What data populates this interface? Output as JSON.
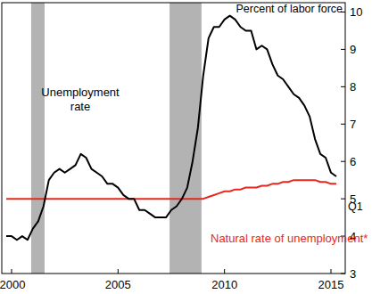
{
  "chart_data": {
    "type": "line",
    "y_label": "Percent of labor force",
    "annotation": "Q1",
    "x": [
      1999.75,
      2000,
      2000.25,
      2000.5,
      2000.75,
      2001,
      2001.25,
      2001.5,
      2001.75,
      2002,
      2002.25,
      2002.5,
      2002.75,
      2003,
      2003.25,
      2003.5,
      2003.75,
      2004,
      2004.25,
      2004.5,
      2004.75,
      2005,
      2005.25,
      2005.5,
      2005.75,
      2006,
      2006.25,
      2006.5,
      2006.75,
      2007,
      2007.25,
      2007.5,
      2007.75,
      2008,
      2008.25,
      2008.5,
      2008.75,
      2009,
      2009.25,
      2009.5,
      2009.75,
      2010,
      2010.25,
      2010.5,
      2010.75,
      2011,
      2011.25,
      2011.5,
      2011.75,
      2012,
      2012.25,
      2012.5,
      2012.75,
      2013,
      2013.25,
      2013.5,
      2013.75,
      2014,
      2014.25,
      2014.5,
      2014.75,
      2015,
      2015.25
    ],
    "series": [
      {
        "name": "Unemployment rate",
        "color": "#000000",
        "values": [
          4.0,
          4.0,
          3.9,
          4.0,
          3.9,
          4.2,
          4.4,
          4.8,
          5.5,
          5.7,
          5.8,
          5.7,
          5.8,
          5.9,
          6.2,
          6.1,
          5.8,
          5.7,
          5.6,
          5.4,
          5.4,
          5.3,
          5.1,
          5.0,
          5.0,
          4.7,
          4.7,
          4.6,
          4.5,
          4.5,
          4.5,
          4.7,
          4.8,
          5.0,
          5.3,
          6.0,
          6.9,
          8.3,
          9.3,
          9.6,
          9.6,
          9.8,
          9.9,
          9.8,
          9.6,
          9.5,
          9.5,
          9.0,
          9.1,
          9.0,
          8.6,
          8.3,
          8.2,
          8.0,
          7.8,
          7.7,
          7.5,
          7.2,
          6.6,
          6.2,
          6.1,
          5.7,
          5.6
        ]
      },
      {
        "name": "Natural rate of unemployment*",
        "color": "#e8281e",
        "values": [
          5.0,
          5.0,
          5.0,
          5.0,
          5.0,
          5.0,
          5.0,
          5.0,
          5.0,
          5.0,
          5.0,
          5.0,
          5.0,
          5.0,
          5.0,
          5.0,
          5.0,
          5.0,
          5.0,
          5.0,
          5.0,
          5.0,
          5.0,
          5.0,
          5.0,
          5.0,
          5.0,
          5.0,
          5.0,
          5.0,
          5.0,
          5.0,
          5.0,
          5.0,
          5.0,
          5.0,
          5.0,
          5.0,
          5.05,
          5.1,
          5.15,
          5.2,
          5.2,
          5.25,
          5.25,
          5.3,
          5.3,
          5.3,
          5.35,
          5.35,
          5.4,
          5.4,
          5.45,
          5.45,
          5.5,
          5.5,
          5.5,
          5.5,
          5.5,
          5.45,
          5.45,
          5.4,
          5.4
        ]
      }
    ],
    "recession_bands": [
      [
        2000.92,
        2001.55
      ],
      [
        2007.42,
        2008.92
      ]
    ],
    "xlim": [
      1999.54,
      2015.67
    ],
    "xticks": [
      2000,
      2005,
      2010,
      2015
    ],
    "ylim": [
      3,
      10.25
    ],
    "yticks": [
      3,
      4,
      5,
      6,
      7,
      8,
      9,
      10
    ],
    "grid": false
  }
}
